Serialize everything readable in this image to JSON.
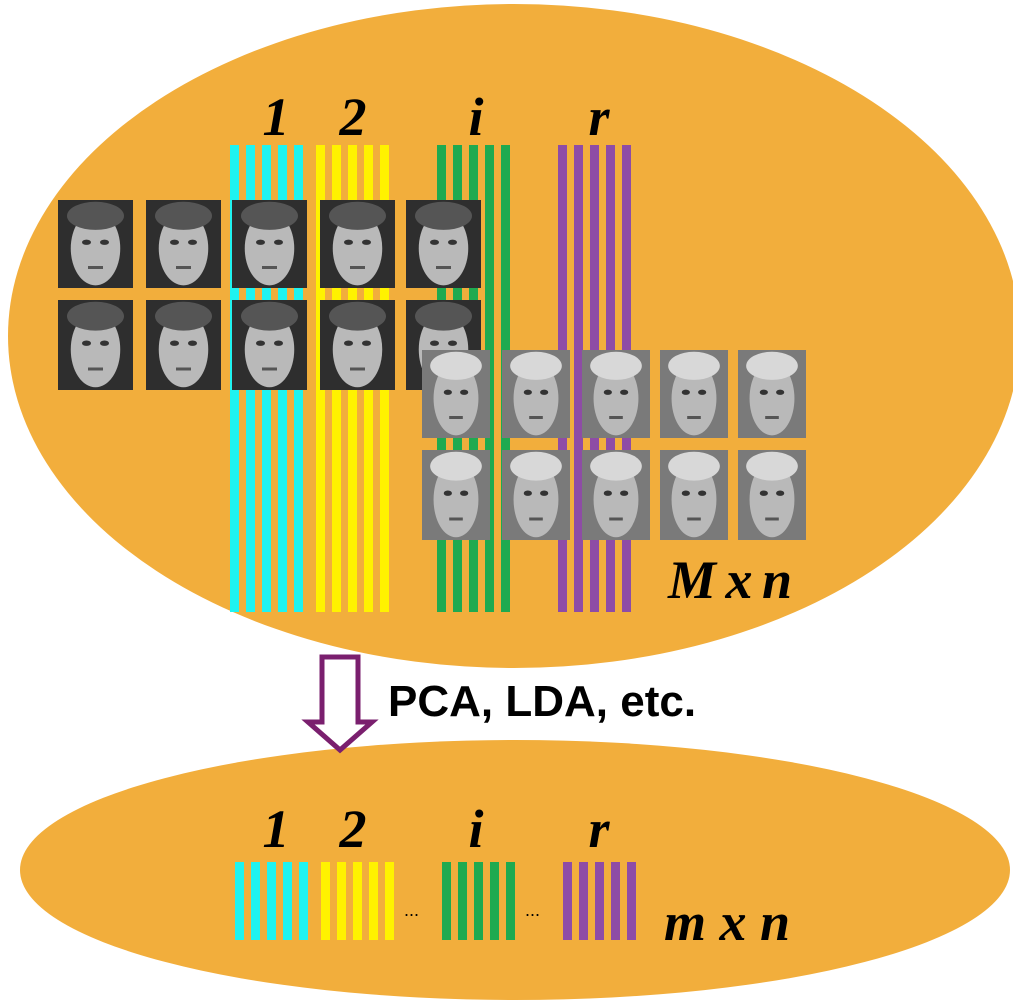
{
  "top": {
    "column_labels": [
      "1",
      "2",
      "i",
      "r"
    ],
    "size_label": "M x n"
  },
  "transform_label": "PCA, LDA, etc.",
  "bottom": {
    "column_labels": [
      "1",
      "2",
      "i",
      "r"
    ],
    "ellipses": [
      "...",
      "..."
    ],
    "size_label": "m x n"
  }
}
